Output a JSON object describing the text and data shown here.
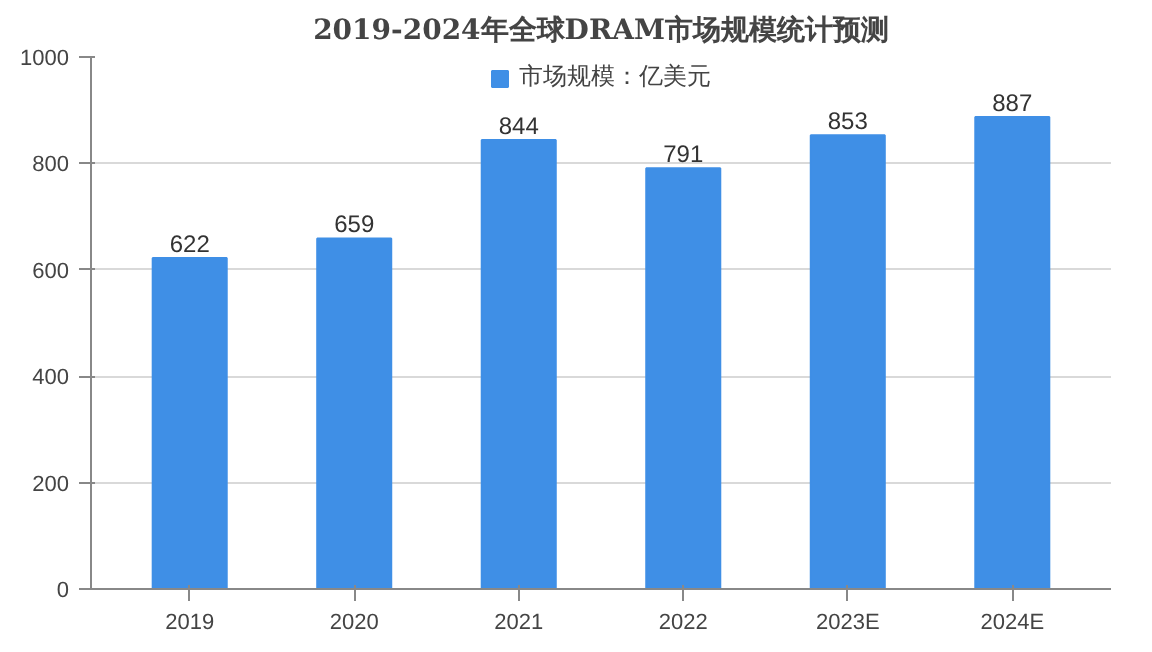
{
  "chart_data": {
    "type": "bar",
    "title": "2019-2024年全球DRAM市场规模统计预测",
    "categories": [
      "2019",
      "2020",
      "2021",
      "2022",
      "2023E",
      "2024E"
    ],
    "series": [
      {
        "name": "市场规模：亿美元",
        "color": "#3f8fe6",
        "values": [
          622,
          659,
          844,
          791,
          853,
          887
        ]
      }
    ],
    "ylim": [
      0,
      1000
    ],
    "yticks": [
      0,
      200,
      400,
      600,
      800,
      1000
    ],
    "grid": "y",
    "legend": "top",
    "data_labels": true
  }
}
